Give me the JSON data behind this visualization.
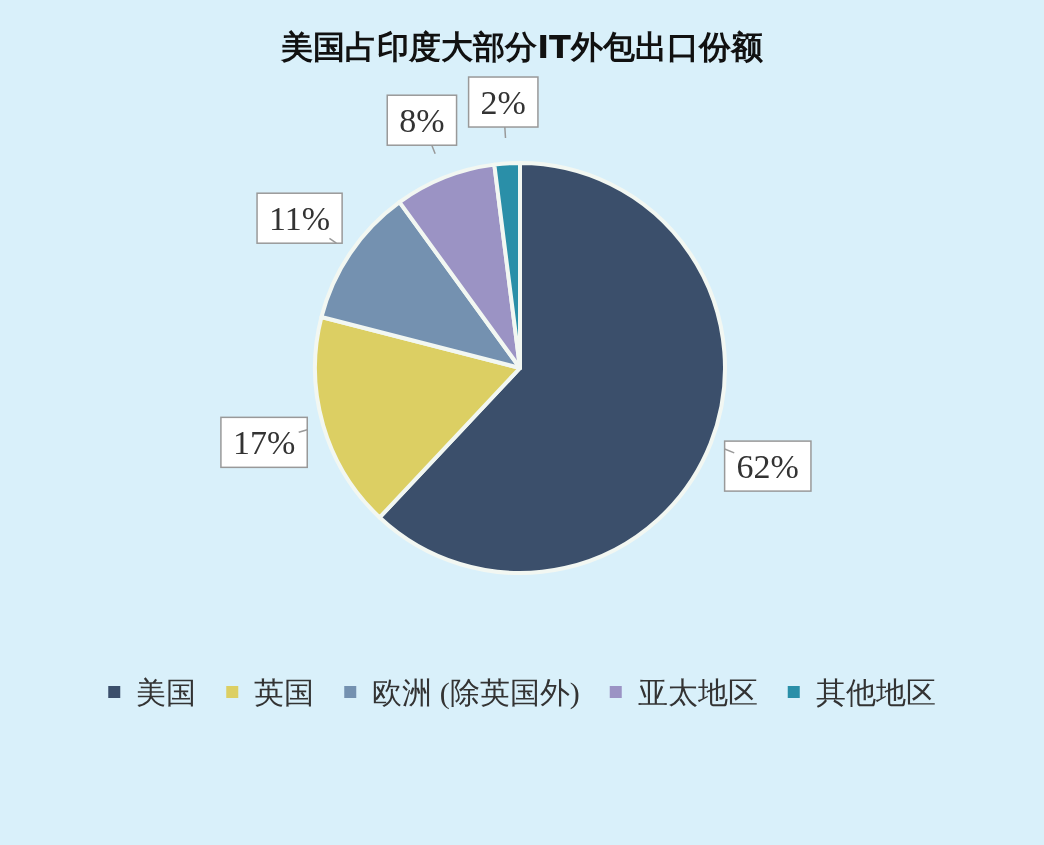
{
  "chart_data": {
    "type": "pie",
    "title": "美国占印度大部分IT外包出口份额",
    "categories": [
      "美国",
      "英国",
      "欧洲 (除英国外)",
      "亚太地区",
      "其他地区"
    ],
    "values": [
      62,
      17,
      11,
      8,
      2
    ],
    "colors": [
      "#3b4f6b",
      "#dccf63",
      "#7491b0",
      "#9b93c4",
      "#2a8fa8"
    ],
    "value_labels": [
      "62%",
      "17%",
      "11%",
      "8%",
      "2%"
    ],
    "legend": "bottom"
  }
}
